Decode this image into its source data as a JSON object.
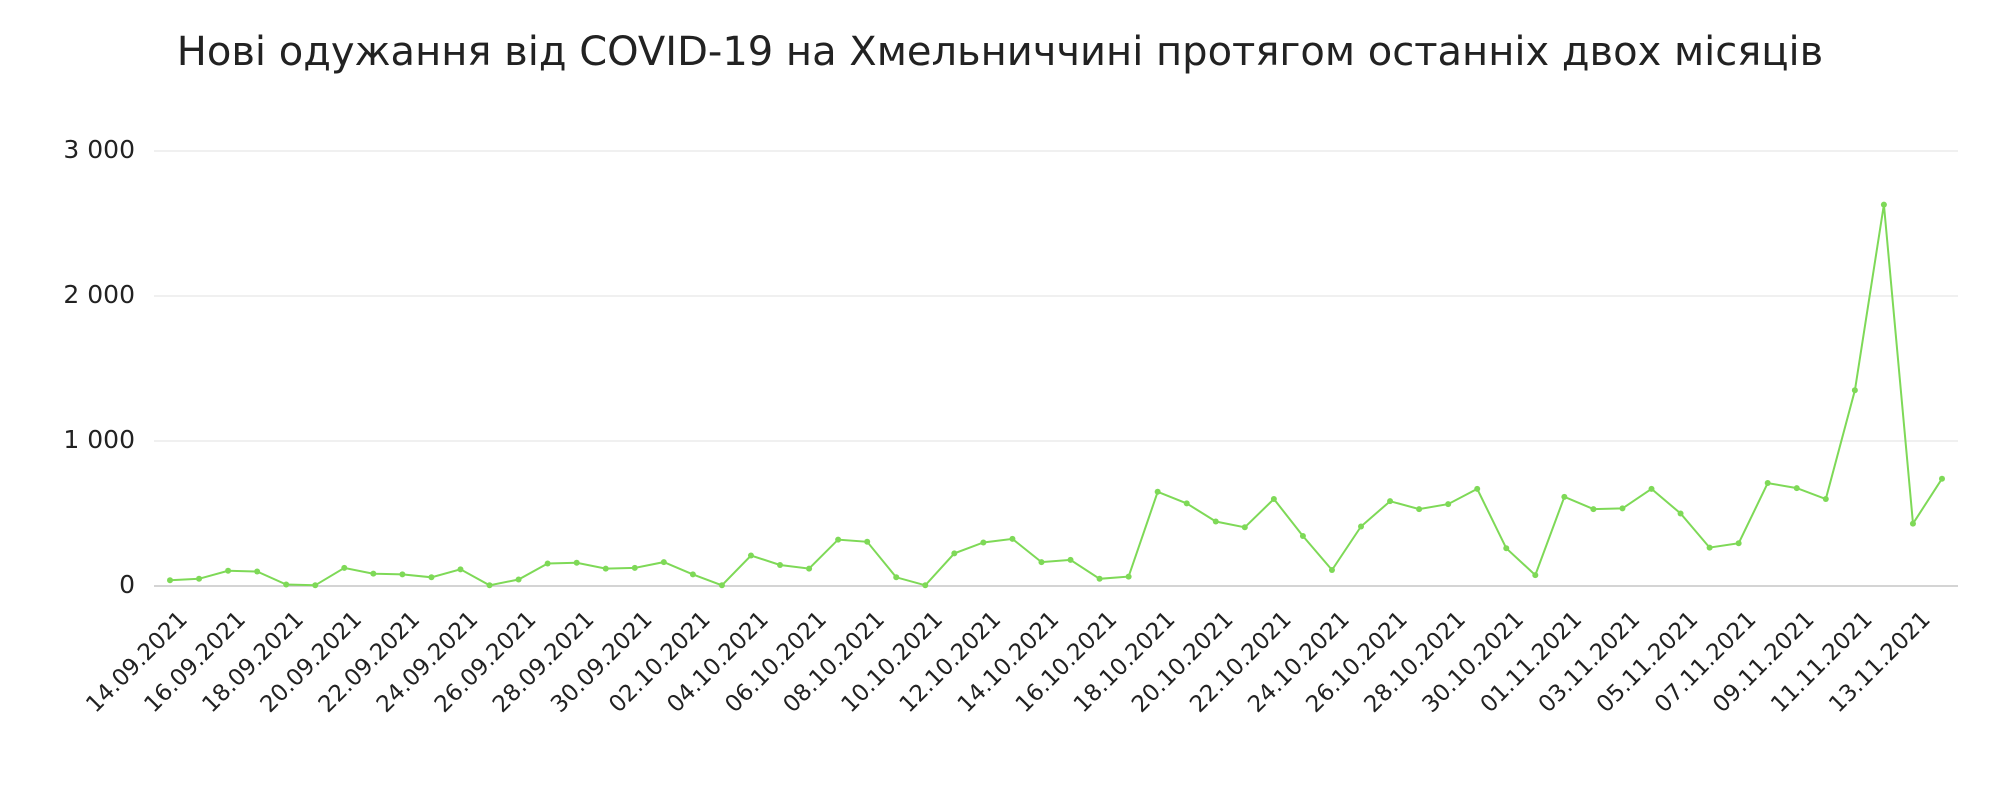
{
  "chart_data": {
    "type": "line",
    "title": "Нові одужання від COVID-19 на Хмельниччині протягом останніх двох місяців",
    "categories": [
      "14.09.2021",
      null,
      "16.09.2021",
      null,
      "18.09.2021",
      null,
      "20.09.2021",
      null,
      "22.09.2021",
      null,
      "24.09.2021",
      null,
      "26.09.2021",
      null,
      "28.09.2021",
      null,
      "30.09.2021",
      null,
      "02.10.2021",
      null,
      "04.10.2021",
      null,
      "06.10.2021",
      null,
      "08.10.2021",
      null,
      "10.10.2021",
      null,
      "12.10.2021",
      null,
      "14.10.2021",
      null,
      "16.10.2021",
      null,
      "18.10.2021",
      null,
      "20.10.2021",
      null,
      "22.10.2021",
      null,
      "24.10.2021",
      null,
      "26.10.2021",
      null,
      "28.10.2021",
      null,
      "30.10.2021",
      null,
      "01.11.2021",
      null,
      "03.11.2021",
      null,
      "05.11.2021",
      null,
      "07.11.2021",
      null,
      "09.11.2021",
      null,
      "11.11.2021",
      null,
      "13.11.2021",
      null
    ],
    "values": [
      40,
      50,
      105,
      100,
      10,
      5,
      125,
      85,
      80,
      60,
      115,
      5,
      45,
      155,
      160,
      120,
      125,
      165,
      80,
      5,
      210,
      145,
      120,
      320,
      305,
      60,
      5,
      225,
      300,
      325,
      165,
      180,
      50,
      65,
      650,
      570,
      445,
      405,
      600,
      345,
      110,
      410,
      585,
      530,
      565,
      670,
      260,
      75,
      615,
      530,
      535,
      670,
      500,
      265,
      295,
      710,
      675,
      600,
      1350,
      2630,
      430,
      740
    ],
    "color": "#7ed957",
    "ylim": [
      0,
      3000
    ],
    "yticks": [
      0,
      {
        "value": 1000,
        "label": "1 000"
      },
      {
        "value": 2000,
        "label": "2 000"
      },
      {
        "value": 3000,
        "label": "3 000"
      }
    ],
    "grid": true
  }
}
